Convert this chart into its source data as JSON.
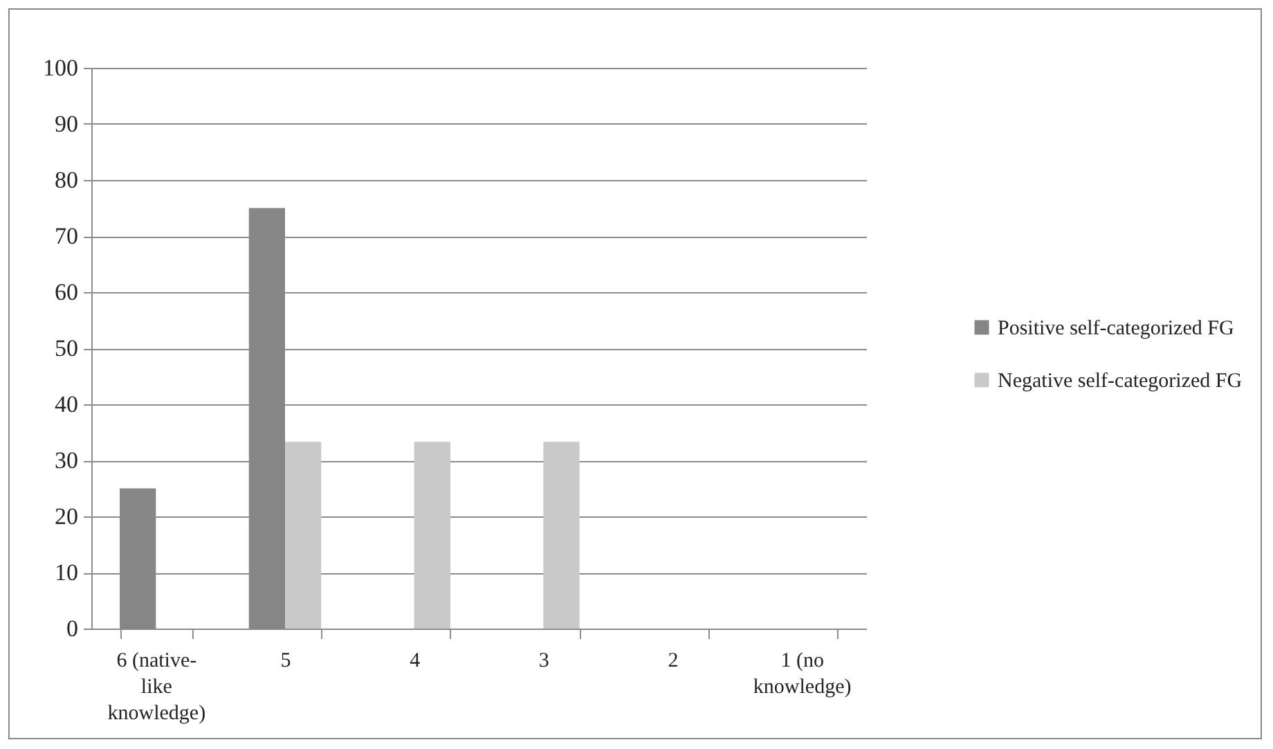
{
  "chart_data": {
    "type": "bar",
    "categories": [
      "6 (native-like knowledge)",
      "5",
      "4",
      "3",
      "2",
      "1 (no knowledge)"
    ],
    "series": [
      {
        "name": "Positive self-categorized FG",
        "color": "#868686",
        "values": [
          25,
          75,
          0,
          0,
          0,
          0
        ]
      },
      {
        "name": "Negative self-categorized FG",
        "color": "#c9c9c9",
        "values": [
          0,
          33.3,
          33.3,
          33.3,
          0,
          0
        ]
      }
    ],
    "ylim": [
      0,
      100
    ],
    "yticks": [
      0,
      10,
      20,
      30,
      40,
      50,
      60,
      70,
      80,
      90,
      100
    ],
    "grid": "y",
    "legend": "right"
  }
}
